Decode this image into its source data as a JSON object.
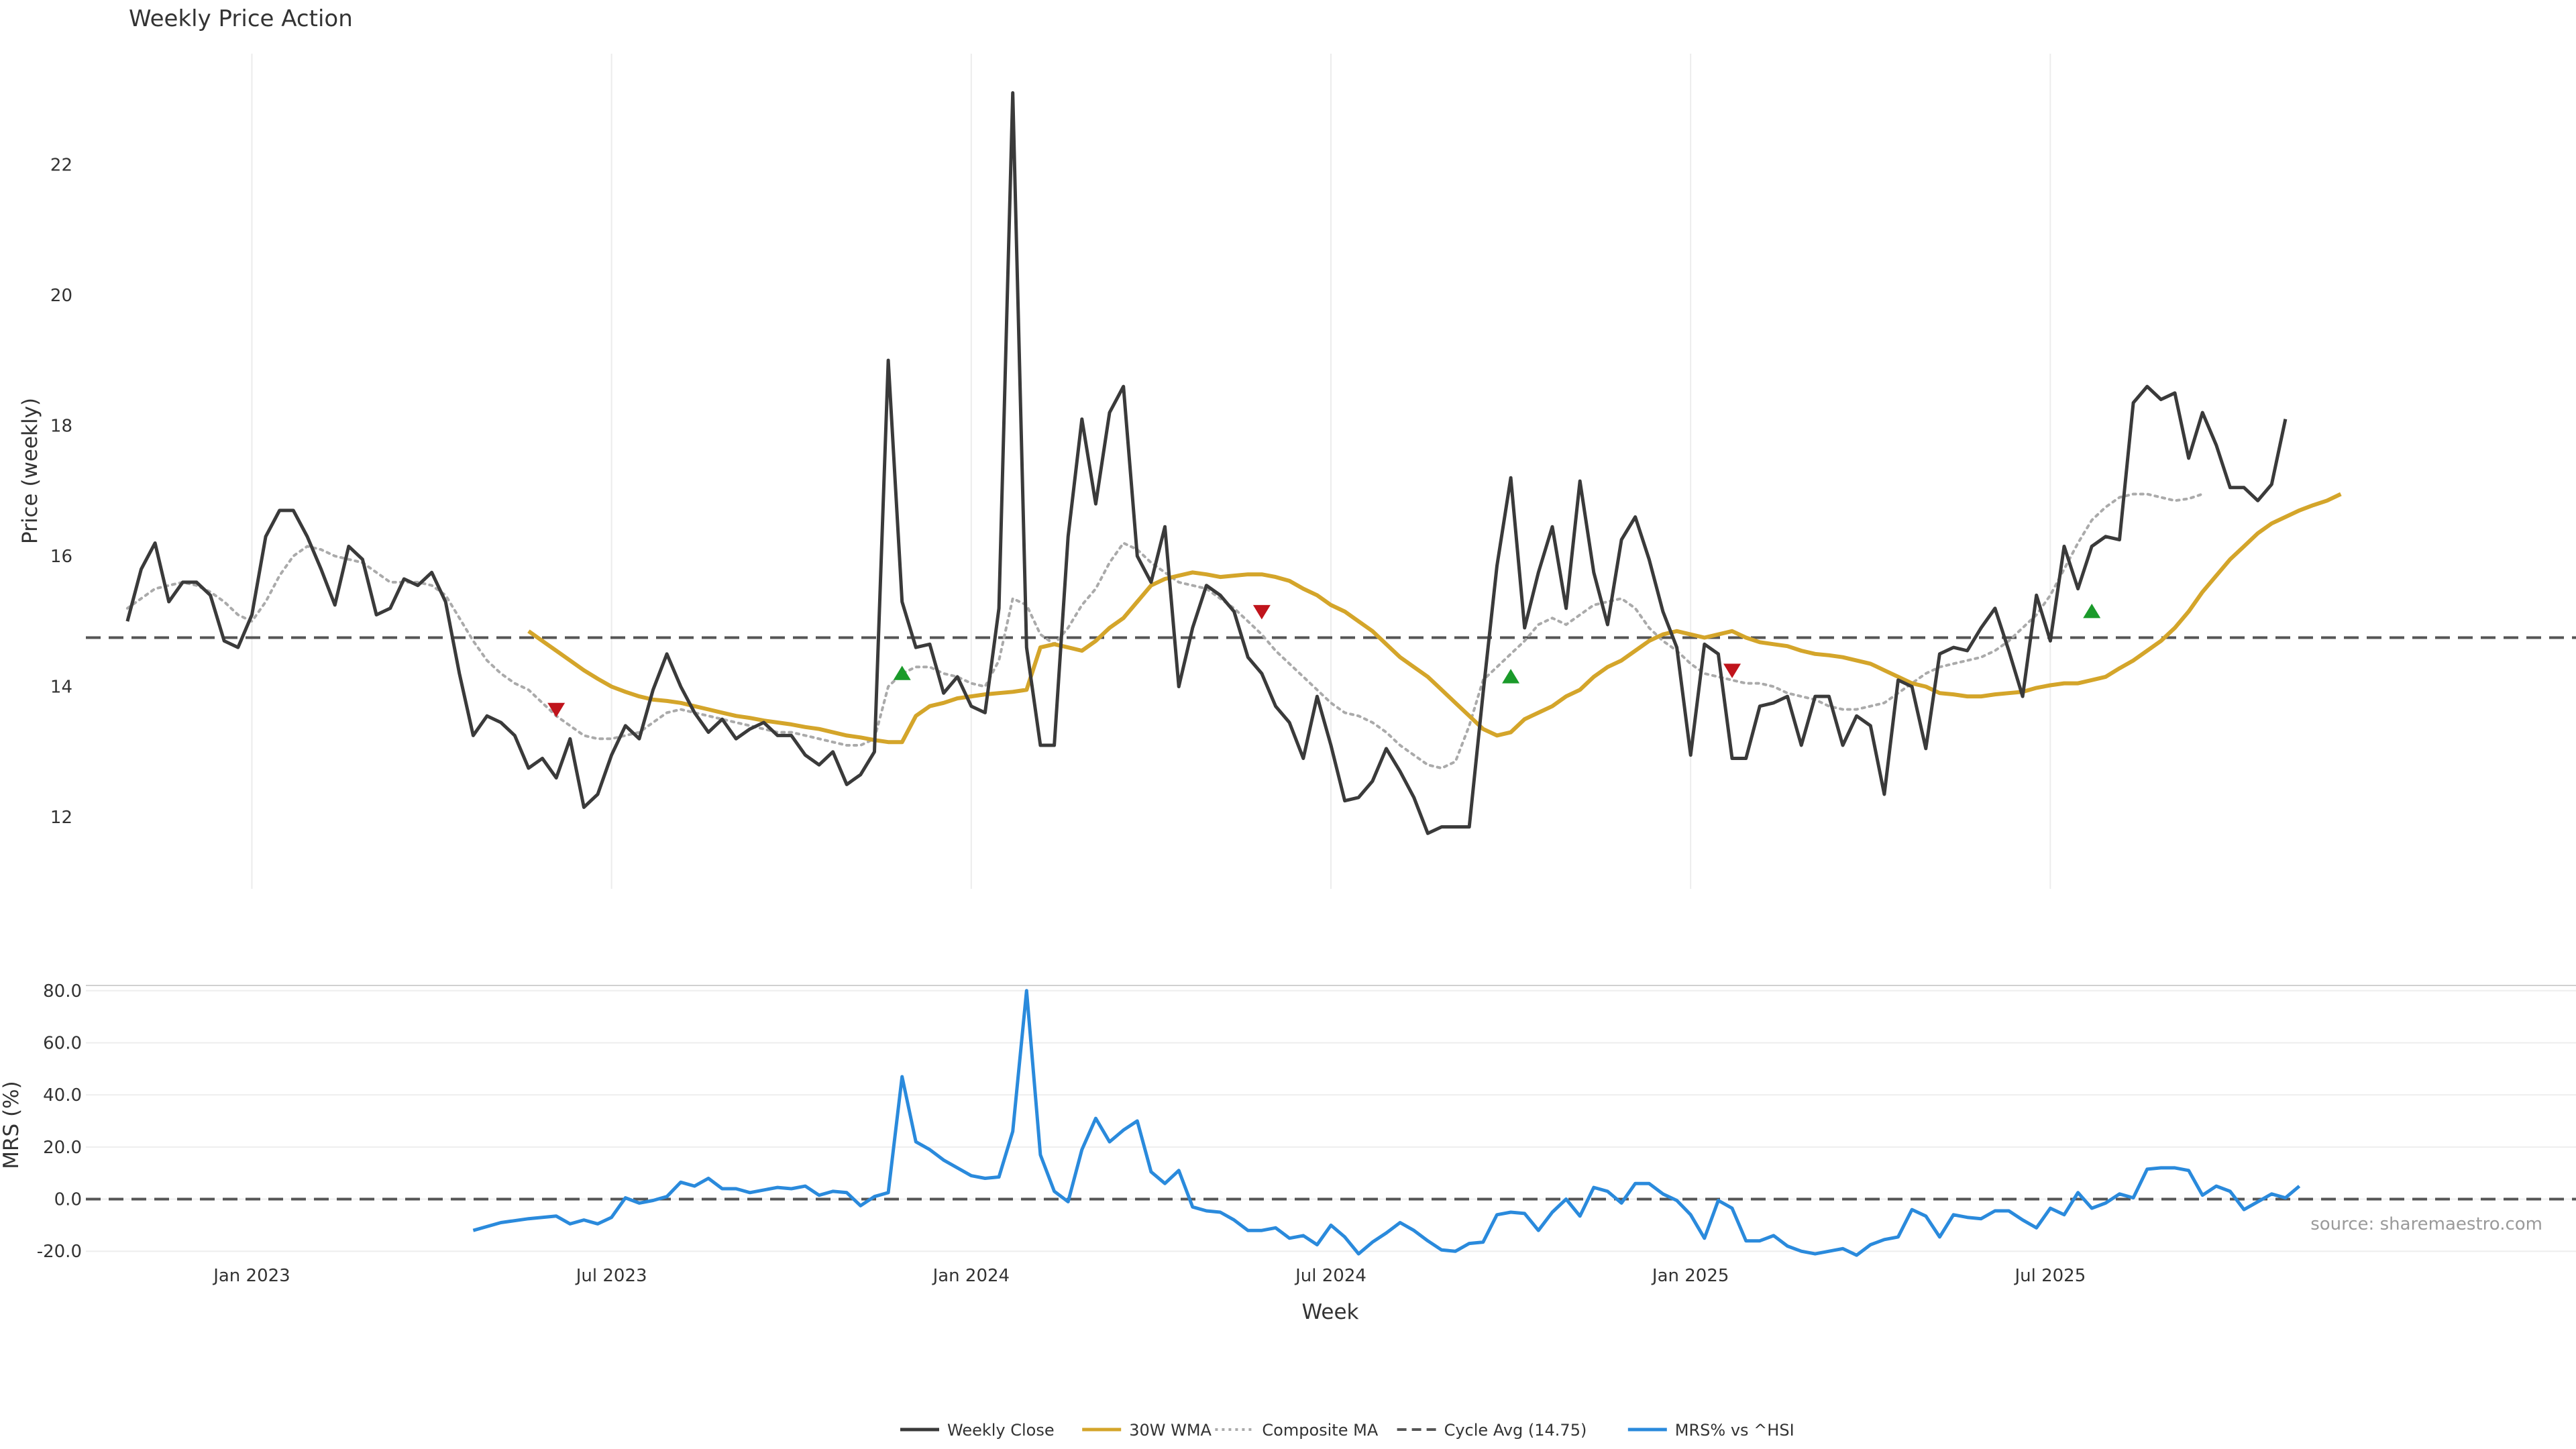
{
  "chart_data": {
    "type": "line",
    "title": "Weekly Price Action",
    "source_label": "source: sharemaestro.com",
    "xlabel": "Week",
    "x_ticks": [
      "Jan 2023",
      "Jul 2023",
      "Jan 2024",
      "Jul 2024",
      "Jan 2025",
      "Jul 2025"
    ],
    "x_range": [
      -12,
      168
    ],
    "tick_weeks": [
      0,
      26,
      52,
      78,
      104,
      130
    ],
    "colors": {
      "close": "#3a3a3a",
      "wma": "#d4a52a",
      "composite": "#aaaaaa",
      "cycle": "#555555",
      "mrs": "#2a8adc",
      "up": "#1a9a2a",
      "down": "#c0141c"
    },
    "legend_position": "bottom-center",
    "price_panel": {
      "ylabel": "Price (weekly)",
      "ylim": [
        10.9,
        23.7
      ],
      "y_ticks": [
        "12",
        "14",
        "16",
        "18",
        "20",
        "22"
      ],
      "y_tick_values": [
        12,
        14,
        16,
        18,
        20,
        22
      ],
      "series": [
        {
          "name": "Weekly Close",
          "start": -9,
          "values": [
            15.0,
            15.8,
            16.2,
            15.3,
            15.6,
            15.6,
            15.4,
            14.7,
            14.6,
            15.1,
            16.3,
            16.7,
            16.7,
            16.3,
            15.8,
            15.25,
            16.15,
            15.95,
            15.1,
            15.2,
            15.65,
            15.55,
            15.75,
            15.3,
            14.2,
            13.25,
            13.55,
            13.45,
            13.25,
            12.75,
            12.9,
            12.6,
            13.2,
            12.15,
            12.35,
            12.95,
            13.4,
            13.2,
            13.95,
            14.5,
            14.0,
            13.6,
            13.3,
            13.5,
            13.2,
            13.35,
            13.45,
            13.25,
            13.25,
            12.95,
            12.8,
            13.0,
            12.5,
            12.65,
            13.0,
            19.0,
            15.3,
            14.6,
            14.65,
            13.9,
            14.15,
            13.7,
            13.6,
            15.2,
            23.1,
            14.6,
            13.1,
            13.1,
            16.3,
            18.1,
            16.8,
            18.2,
            18.6,
            16.0,
            15.6,
            16.45,
            14.0,
            14.9,
            15.55,
            15.4,
            15.15,
            14.45,
            14.2,
            13.7,
            13.45,
            12.9,
            13.85,
            13.1,
            12.25,
            12.3,
            12.55,
            13.05,
            12.7,
            12.3,
            11.75,
            11.85,
            11.85,
            11.85,
            13.9,
            15.85,
            17.2,
            14.9,
            15.75,
            16.45,
            15.2,
            17.15,
            15.75,
            14.95,
            16.25,
            16.6,
            15.95,
            15.15,
            14.6,
            12.95,
            14.65,
            14.5,
            12.9,
            12.9,
            13.7,
            13.75,
            13.85,
            13.1,
            13.85,
            13.85,
            13.1,
            13.55,
            13.4,
            12.35,
            14.1,
            14.0,
            13.05,
            14.5,
            14.6,
            14.55,
            14.9,
            15.2,
            14.55,
            13.85,
            15.4,
            14.7,
            16.15,
            15.5,
            16.15,
            16.3,
            16.25,
            18.35,
            18.6,
            18.4,
            18.5,
            17.5,
            18.2,
            17.7,
            17.05,
            17.05,
            16.85,
            17.1,
            18.1
          ]
        },
        {
          "name": "30W WMA",
          "start": 20,
          "values": [
            14.85,
            14.7,
            14.55,
            14.4,
            14.25,
            14.12,
            14.0,
            13.92,
            13.85,
            13.8,
            13.78,
            13.75,
            13.7,
            13.65,
            13.6,
            13.55,
            13.52,
            13.48,
            13.45,
            13.42,
            13.38,
            13.35,
            13.3,
            13.25,
            13.22,
            13.18,
            13.15,
            13.15,
            13.55,
            13.7,
            13.75,
            13.82,
            13.85,
            13.88,
            13.9,
            13.92,
            13.95,
            14.6,
            14.65,
            14.6,
            14.55,
            14.7,
            14.9,
            15.05,
            15.3,
            15.55,
            15.65,
            15.7,
            15.75,
            15.72,
            15.68,
            15.7,
            15.72,
            15.72,
            15.68,
            15.62,
            15.5,
            15.4,
            15.25,
            15.15,
            15.0,
            14.85,
            14.65,
            14.45,
            14.3,
            14.15,
            13.95,
            13.75,
            13.55,
            13.35,
            13.25,
            13.3,
            13.5,
            13.6,
            13.7,
            13.85,
            13.95,
            14.15,
            14.3,
            14.4,
            14.55,
            14.7,
            14.8,
            14.85,
            14.8,
            14.75,
            14.8,
            14.85,
            14.75,
            14.68,
            14.65,
            14.62,
            14.55,
            14.5,
            14.48,
            14.45,
            14.4,
            14.35,
            14.25,
            14.15,
            14.05,
            14.0,
            13.9,
            13.88,
            13.85,
            13.85,
            13.88,
            13.9,
            13.92,
            13.98,
            14.02,
            14.05,
            14.05,
            14.1,
            14.15,
            14.28,
            14.4,
            14.55,
            14.7,
            14.9,
            15.15,
            15.45,
            15.7,
            15.95,
            16.15,
            16.35,
            16.5,
            16.6,
            16.7,
            16.78,
            16.85,
            16.95
          ]
        },
        {
          "name": "Composite MA",
          "start": -9,
          "values": [
            15.2,
            15.35,
            15.5,
            15.55,
            15.6,
            15.55,
            15.45,
            15.3,
            15.1,
            15.0,
            15.3,
            15.7,
            16.0,
            16.15,
            16.1,
            16.0,
            15.95,
            15.9,
            15.75,
            15.6,
            15.6,
            15.6,
            15.55,
            15.4,
            15.05,
            14.7,
            14.4,
            14.2,
            14.05,
            13.95,
            13.75,
            13.55,
            13.4,
            13.25,
            13.2,
            13.2,
            13.25,
            13.3,
            13.45,
            13.6,
            13.65,
            13.6,
            13.55,
            13.5,
            13.45,
            13.4,
            13.35,
            13.3,
            13.3,
            13.25,
            13.2,
            13.15,
            13.1,
            13.1,
            13.2,
            14.0,
            14.2,
            14.3,
            14.3,
            14.2,
            14.15,
            14.05,
            14.0,
            14.4,
            15.35,
            15.25,
            14.8,
            14.65,
            14.9,
            15.25,
            15.5,
            15.9,
            16.2,
            16.1,
            15.9,
            15.75,
            15.6,
            15.55,
            15.5,
            15.35,
            15.2,
            15.0,
            14.8,
            14.55,
            14.35,
            14.15,
            13.95,
            13.75,
            13.6,
            13.55,
            13.45,
            13.3,
            13.1,
            12.95,
            12.8,
            12.75,
            12.85,
            13.4,
            14.1,
            14.3,
            14.5,
            14.7,
            14.95,
            15.05,
            14.95,
            15.1,
            15.25,
            15.3,
            15.35,
            15.2,
            14.9,
            14.7,
            14.55,
            14.35,
            14.2,
            14.15,
            14.1,
            14.05,
            14.05,
            14.0,
            13.9,
            13.85,
            13.8,
            13.7,
            13.65,
            13.65,
            13.7,
            13.75,
            13.9,
            14.05,
            14.2,
            14.3,
            14.35,
            14.4,
            14.45,
            14.55,
            14.7,
            14.9,
            15.1,
            15.4,
            15.8,
            16.2,
            16.55,
            16.75,
            16.9,
            16.95,
            16.95,
            16.9,
            16.85,
            16.88,
            16.95
          ]
        },
        {
          "name": "Cycle Avg (14.75)",
          "value": 14.75
        }
      ],
      "markers": [
        {
          "direction": "down",
          "week": 22,
          "value": 13.65
        },
        {
          "direction": "up",
          "week": 47,
          "value": 14.2
        },
        {
          "direction": "down",
          "week": 73,
          "value": 15.15
        },
        {
          "direction": "up",
          "week": 91,
          "value": 14.15
        },
        {
          "direction": "down",
          "week": 107,
          "value": 14.25
        },
        {
          "direction": "up",
          "week": 133,
          "value": 15.15
        }
      ]
    },
    "mrs_panel": {
      "ylabel": "MRS (%)",
      "ylim": [
        -22,
        82
      ],
      "y_ticks": [
        "80.0",
        "60.0",
        "40.0",
        "20.0",
        "0.0",
        "-20.0"
      ],
      "y_tick_values": [
        80,
        60,
        40,
        20,
        0,
        -20
      ],
      "zero_line": 0,
      "series": [
        {
          "name": "MRS% vs ^HSI",
          "points": [
            [
              16,
              -12
            ],
            [
              18,
              -9
            ],
            [
              20,
              -7.5
            ],
            [
              22,
              -6.5
            ],
            [
              23,
              -9.5
            ],
            [
              24,
              -8
            ],
            [
              25,
              -9.5
            ],
            [
              26,
              -7
            ],
            [
              27,
              0.5
            ],
            [
              28,
              -1.5
            ],
            [
              29,
              -0.5
            ],
            [
              30,
              1
            ],
            [
              31,
              6.5
            ],
            [
              32,
              5
            ],
            [
              33,
              8
            ],
            [
              34,
              4
            ],
            [
              35,
              4
            ],
            [
              36,
              2.5
            ],
            [
              37,
              3.5
            ],
            [
              38,
              4.5
            ],
            [
              39,
              4
            ],
            [
              40,
              5
            ],
            [
              41,
              1.5
            ],
            [
              42,
              3
            ],
            [
              43,
              2.5
            ],
            [
              44,
              -2.5
            ],
            [
              45,
              1
            ],
            [
              46,
              2.5
            ],
            [
              47,
              47
            ],
            [
              48,
              22
            ],
            [
              49,
              19
            ],
            [
              50,
              15
            ],
            [
              51,
              12
            ],
            [
              52,
              9
            ],
            [
              53,
              8
            ],
            [
              54,
              8.5
            ],
            [
              55,
              26
            ],
            [
              56,
              80
            ],
            [
              57,
              17
            ],
            [
              58,
              3
            ],
            [
              59,
              -1
            ],
            [
              60,
              19
            ],
            [
              61,
              31
            ],
            [
              62,
              22
            ],
            [
              63,
              26.5
            ],
            [
              64,
              30
            ],
            [
              65,
              10.5
            ],
            [
              66,
              6
            ],
            [
              67,
              11
            ],
            [
              68,
              -3
            ],
            [
              69,
              -4.5
            ],
            [
              70,
              -5
            ],
            [
              71,
              -8
            ],
            [
              72,
              -12
            ],
            [
              73,
              -12
            ],
            [
              74,
              -11
            ],
            [
              75,
              -15
            ],
            [
              76,
              -14
            ],
            [
              77,
              -17.5
            ],
            [
              78,
              -10
            ],
            [
              79,
              -14.5
            ],
            [
              80,
              -21
            ],
            [
              81,
              -16.5
            ],
            [
              82,
              -13
            ],
            [
              83,
              -9
            ],
            [
              84,
              -12
            ],
            [
              85,
              -16
            ],
            [
              86,
              -19.5
            ],
            [
              87,
              -20
            ],
            [
              88,
              -17
            ],
            [
              89,
              -16.5
            ],
            [
              90,
              -6
            ],
            [
              91,
              -5
            ],
            [
              92,
              -5.5
            ],
            [
              93,
              -12
            ],
            [
              94,
              -5
            ],
            [
              95,
              0
            ],
            [
              96,
              -6.5
            ],
            [
              97,
              4.5
            ],
            [
              98,
              3
            ],
            [
              99,
              -1.5
            ],
            [
              100,
              6
            ],
            [
              101,
              6
            ],
            [
              102,
              2
            ],
            [
              103,
              -0.5
            ],
            [
              104,
              -6
            ],
            [
              105,
              -15
            ],
            [
              106,
              -0.5
            ],
            [
              107,
              -3.5
            ],
            [
              108,
              -16
            ],
            [
              109,
              -16
            ],
            [
              110,
              -14
            ],
            [
              111,
              -18
            ],
            [
              112,
              -20
            ],
            [
              113,
              -21
            ],
            [
              114,
              -20
            ],
            [
              115,
              -19
            ],
            [
              116,
              -21.5
            ],
            [
              117,
              -17.5
            ],
            [
              118,
              -15.5
            ],
            [
              119,
              -14.5
            ],
            [
              120,
              -4
            ],
            [
              121,
              -6.5
            ],
            [
              122,
              -14.5
            ],
            [
              123,
              -6
            ],
            [
              124,
              -7
            ],
            [
              125,
              -7.5
            ],
            [
              126,
              -4.5
            ],
            [
              127,
              -4.5
            ],
            [
              128,
              -8
            ],
            [
              129,
              -11
            ],
            [
              130,
              -3.5
            ],
            [
              131,
              -6
            ],
            [
              132,
              2.5
            ],
            [
              133,
              -3.5
            ],
            [
              134,
              -1.5
            ],
            [
              135,
              2
            ],
            [
              136,
              0.5
            ],
            [
              137,
              11.5
            ],
            [
              138,
              12
            ],
            [
              139,
              12
            ],
            [
              140,
              11
            ],
            [
              141,
              1.5
            ],
            [
              142,
              5
            ],
            [
              143,
              3
            ],
            [
              144,
              -4
            ],
            [
              145,
              -1
            ],
            [
              146,
              2
            ],
            [
              147,
              0.5
            ],
            [
              148,
              5
            ]
          ]
        }
      ]
    },
    "legend": [
      {
        "label": "Weekly Close",
        "style": "solid",
        "color": "#3a3a3a"
      },
      {
        "label": "30W WMA",
        "style": "solid",
        "color": "#d4a52a"
      },
      {
        "label": "Composite MA",
        "style": "dotted",
        "color": "#aaaaaa"
      },
      {
        "label": "Cycle Avg (14.75)",
        "style": "dashed",
        "color": "#555555"
      },
      {
        "label": "MRS% vs ^HSI",
        "style": "solid",
        "color": "#2a8adc"
      }
    ]
  }
}
